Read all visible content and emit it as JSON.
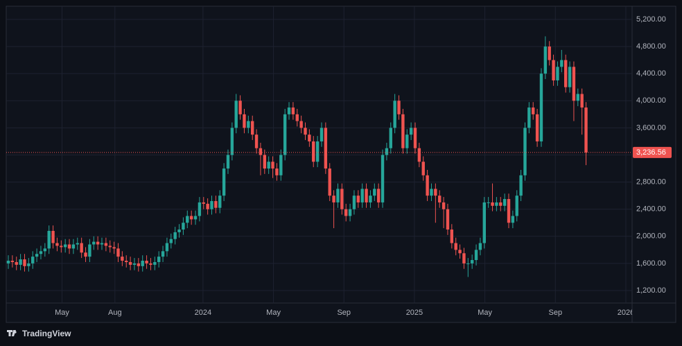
{
  "chart_data": {
    "type": "candlestick",
    "x": [
      "2023-01",
      "2023-02",
      "2023-02",
      "2023-02",
      "2023-02",
      "2023-03",
      "2023-03",
      "2023-03",
      "2023-03",
      "2023-04",
      "2023-04",
      "2023-04",
      "2023-04",
      "2023-05",
      "2023-05",
      "2023-05",
      "2023-05",
      "2023-05",
      "2023-06",
      "2023-06",
      "2023-06",
      "2023-06",
      "2023-07",
      "2023-07",
      "2023-07",
      "2023-07",
      "2023-07",
      "2023-08",
      "2023-08",
      "2023-08",
      "2023-08",
      "2023-09",
      "2023-09",
      "2023-09",
      "2023-09",
      "2023-10",
      "2023-10",
      "2023-10",
      "2023-10",
      "2023-10",
      "2023-11",
      "2023-11",
      "2023-11",
      "2023-11",
      "2023-12",
      "2023-12",
      "2023-12",
      "2023-12",
      "2024-01",
      "2024-01",
      "2024-01",
      "2024-01",
      "2024-01",
      "2024-02",
      "2024-02",
      "2024-02",
      "2024-02",
      "2024-03",
      "2024-03",
      "2024-03",
      "2024-03",
      "2024-04",
      "2024-04",
      "2024-04",
      "2024-04",
      "2024-04",
      "2024-05",
      "2024-05",
      "2024-05",
      "2024-05",
      "2024-06",
      "2024-06",
      "2024-06",
      "2024-06",
      "2024-07",
      "2024-07",
      "2024-07",
      "2024-07",
      "2024-07",
      "2024-08",
      "2024-08",
      "2024-08",
      "2024-08",
      "2024-09",
      "2024-09",
      "2024-09",
      "2024-09",
      "2024-09",
      "2024-10",
      "2024-10",
      "2024-10",
      "2024-10",
      "2024-11",
      "2024-11",
      "2024-11",
      "2024-11",
      "2024-12",
      "2024-12",
      "2024-12",
      "2024-12",
      "2024-12",
      "2025-01",
      "2025-01",
      "2025-01",
      "2025-01",
      "2025-02",
      "2025-02",
      "2025-02",
      "2025-02",
      "2025-03",
      "2025-03",
      "2025-03",
      "2025-03",
      "2025-03",
      "2025-04",
      "2025-04",
      "2025-04",
      "2025-04",
      "2025-05",
      "2025-05",
      "2025-05",
      "2025-05",
      "2025-06",
      "2025-06",
      "2025-06",
      "2025-06",
      "2025-07",
      "2025-07",
      "2025-07",
      "2025-07",
      "2025-08",
      "2025-08",
      "2025-08",
      "2025-08",
      "2025-09",
      "2025-09",
      "2025-09",
      "2025-09",
      "2025-09",
      "2025-10",
      "2025-10",
      "2025-10",
      "2025-10"
    ],
    "open": [
      1600,
      1640,
      1620,
      1580,
      1660,
      1560,
      1600,
      1700,
      1740,
      1780,
      1820,
      2080,
      1900,
      1860,
      1840,
      1880,
      1820,
      1880,
      1900,
      1760,
      1700,
      1880,
      1920,
      1880,
      1900,
      1860,
      1840,
      1820,
      1700,
      1640,
      1620,
      1580,
      1600,
      1560,
      1640,
      1600,
      1580,
      1620,
      1700,
      1780,
      1900,
      1960,
      2060,
      2100,
      2200,
      2300,
      2250,
      2300,
      2500,
      2480,
      2400,
      2520,
      2420,
      2600,
      3000,
      3200,
      3600,
      4000,
      3800,
      3600,
      3700,
      3500,
      3300,
      3200,
      3000,
      3100,
      3000,
      2900,
      3200,
      3800,
      3900,
      3800,
      3700,
      3600,
      3500,
      3400,
      3100,
      3400,
      3600,
      3000,
      2600,
      2500,
      2700,
      2400,
      2300,
      2400,
      2600,
      2500,
      2700,
      2500,
      2600,
      2700,
      2500,
      3200,
      3300,
      3600,
      4000,
      3800,
      3300,
      3500,
      3600,
      3300,
      3100,
      2900,
      2600,
      2700,
      2600,
      2500,
      2400,
      2100,
      1900,
      1800,
      1750,
      1600,
      1600,
      1650,
      1800,
      1900,
      2500,
      2500,
      2450,
      2500,
      2450,
      2550,
      2200,
      2300,
      2600,
      2900,
      3600,
      3900,
      3800,
      3400,
      4400,
      4800,
      4600,
      4300,
      4500,
      4600,
      4200,
      4500,
      4000,
      4100,
      3900
    ],
    "high": [
      1720,
      1720,
      1700,
      1740,
      1740,
      1680,
      1780,
      1820,
      1860,
      1900,
      2160,
      2160,
      1980,
      1940,
      1960,
      1960,
      1960,
      1980,
      1980,
      1840,
      1960,
      2000,
      2000,
      1980,
      1980,
      1940,
      1920,
      1900,
      1780,
      1720,
      1700,
      1680,
      1680,
      1720,
      1720,
      1680,
      1700,
      1780,
      1860,
      1980,
      2040,
      2140,
      2180,
      2280,
      2380,
      2380,
      2380,
      2580,
      2580,
      2560,
      2600,
      2600,
      2680,
      3080,
      3280,
      3680,
      4100,
      4080,
      3880,
      3780,
      3780,
      3580,
      3380,
      3280,
      3180,
      3180,
      3080,
      3280,
      3880,
      3980,
      3980,
      3880,
      3780,
      3680,
      3580,
      3480,
      3480,
      3680,
      3680,
      3080,
      2680,
      2780,
      2780,
      2480,
      2480,
      2680,
      2680,
      2780,
      2780,
      2680,
      2780,
      2780,
      3280,
      3380,
      3680,
      4100,
      4080,
      3880,
      3580,
      3680,
      3680,
      3380,
      3180,
      2980,
      2780,
      2780,
      2680,
      2580,
      2480,
      2180,
      1980,
      1880,
      1830,
      1680,
      1730,
      1880,
      1980,
      2580,
      2580,
      2780,
      2580,
      2580,
      2630,
      2630,
      2380,
      2680,
      2980,
      3680,
      3980,
      3980,
      3880,
      4480,
      4950,
      4880,
      4680,
      4580,
      4750,
      4680,
      4580,
      4580,
      4180,
      4180,
      3980
    ],
    "low": [
      1520,
      1540,
      1500,
      1500,
      1480,
      1480,
      1520,
      1620,
      1660,
      1700,
      1740,
      1820,
      1780,
      1760,
      1760,
      1740,
      1740,
      1800,
      1680,
      1620,
      1620,
      1800,
      1800,
      1800,
      1780,
      1760,
      1740,
      1620,
      1560,
      1540,
      1500,
      1500,
      1480,
      1480,
      1520,
      1500,
      1500,
      1540,
      1620,
      1700,
      1820,
      1880,
      1980,
      2020,
      2120,
      2170,
      2170,
      2220,
      2400,
      2320,
      2320,
      2340,
      2340,
      2520,
      2920,
      3120,
      3520,
      3720,
      3520,
      3520,
      3420,
      3220,
      2900,
      2920,
      2920,
      2860,
      2820,
      2820,
      3120,
      3720,
      3720,
      3620,
      3520,
      3420,
      3320,
      3020,
      3020,
      3320,
      2920,
      2520,
      2120,
      2420,
      2320,
      2220,
      2220,
      2320,
      2420,
      2420,
      2420,
      2420,
      2520,
      2420,
      2420,
      3120,
      3220,
      3520,
      3720,
      3220,
      3220,
      3420,
      3220,
      3020,
      2820,
      2520,
      2520,
      2200,
      2420,
      2120,
      2020,
      1820,
      1720,
      1670,
      1520,
      1400,
      1520,
      1570,
      1720,
      1820,
      2420,
      2370,
      2370,
      2370,
      2370,
      2120,
      2120,
      2220,
      2520,
      2820,
      3520,
      3720,
      3320,
      3320,
      4320,
      4520,
      4220,
      4220,
      4420,
      4120,
      4120,
      3700,
      3920,
      3500,
      3050
    ],
    "close": [
      1640,
      1620,
      1580,
      1660,
      1560,
      1600,
      1700,
      1740,
      1780,
      1820,
      2080,
      1900,
      1860,
      1840,
      1880,
      1820,
      1880,
      1900,
      1760,
      1700,
      1880,
      1920,
      1880,
      1900,
      1860,
      1840,
      1820,
      1700,
      1640,
      1620,
      1580,
      1600,
      1560,
      1640,
      1600,
      1580,
      1620,
      1700,
      1780,
      1900,
      1960,
      2060,
      2100,
      2200,
      2300,
      2250,
      2300,
      2500,
      2480,
      2400,
      2520,
      2420,
      2600,
      3000,
      3200,
      3600,
      4000,
      3800,
      3600,
      3700,
      3500,
      3300,
      3200,
      3000,
      3100,
      3000,
      2900,
      3200,
      3800,
      3900,
      3800,
      3700,
      3600,
      3500,
      3400,
      3100,
      3400,
      3600,
      3000,
      2600,
      2500,
      2700,
      2400,
      2300,
      2400,
      2600,
      2500,
      2700,
      2500,
      2600,
      2700,
      2500,
      3200,
      3300,
      3600,
      4000,
      3800,
      3300,
      3500,
      3600,
      3300,
      3100,
      2900,
      2600,
      2700,
      2600,
      2500,
      2400,
      2100,
      1900,
      1800,
      1750,
      1600,
      1600,
      1650,
      1800,
      1900,
      2500,
      2500,
      2450,
      2500,
      2450,
      2550,
      2200,
      2300,
      2600,
      2900,
      3600,
      3900,
      3800,
      3400,
      4400,
      4800,
      4600,
      4300,
      4500,
      4600,
      4200,
      4500,
      4000,
      4100,
      3900,
      3236.56
    ],
    "last_value_label": "3,236.56",
    "up_color": "#26a69a",
    "down_color": "#ef5350",
    "ylim": [
      1016,
      5394
    ],
    "yticks": [
      {
        "value": 1200,
        "label": "1,200.00"
      },
      {
        "value": 1600,
        "label": "1,600.00"
      },
      {
        "value": 2000,
        "label": "2,000.00"
      },
      {
        "value": 2400,
        "label": "2,400.00"
      },
      {
        "value": 2800,
        "label": "2,800.00"
      },
      {
        "value": 3200,
        "label": "3,200.00"
      },
      {
        "value": 3600,
        "label": "3,600.00"
      },
      {
        "value": 4000,
        "label": "4,000.00"
      },
      {
        "value": 4400,
        "label": "4,400.00"
      },
      {
        "value": 4800,
        "label": "4,800.00"
      },
      {
        "value": 5200,
        "label": "5,200.00"
      }
    ],
    "xticks": [
      {
        "value": "2023-05",
        "label": "May"
      },
      {
        "value": "2023-08",
        "label": "Aug"
      },
      {
        "value": "2024-01",
        "label": "2024"
      },
      {
        "value": "2024-05",
        "label": "May"
      },
      {
        "value": "2024-09",
        "label": "Sep"
      },
      {
        "value": "2025-01",
        "label": "2025"
      },
      {
        "value": "2025-05",
        "label": "May"
      },
      {
        "value": "2025-09",
        "label": "Sep"
      },
      {
        "value": "2026-01",
        "label": "2026"
      }
    ],
    "grid": true,
    "brand": "TradingView"
  }
}
